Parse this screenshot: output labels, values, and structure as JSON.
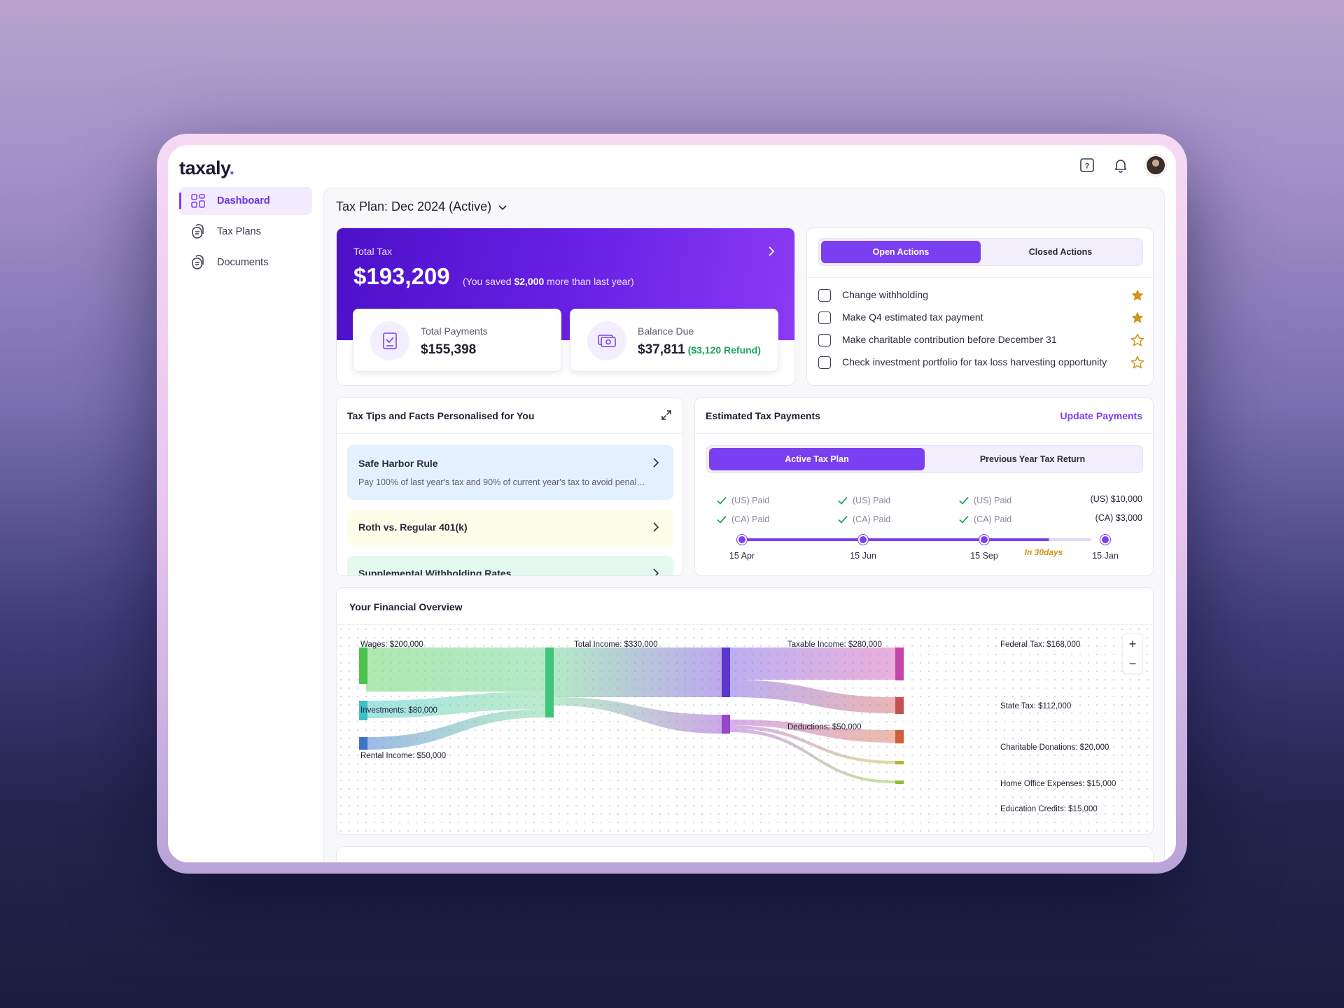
{
  "app": {
    "logo_text": "taxaly",
    "logo_dot": "."
  },
  "header": {
    "icons": [
      "help-icon",
      "bell-icon",
      "avatar"
    ]
  },
  "sidebar": {
    "items": [
      {
        "label": "Dashboard",
        "icon": "dashboard-grid-icon",
        "active": true
      },
      {
        "label": "Tax Plans",
        "icon": "tax-plans-icon",
        "active": false
      },
      {
        "label": "Documents",
        "icon": "documents-icon",
        "active": false
      }
    ]
  },
  "plan": {
    "title": "Tax Plan: Dec 2024 (Active)"
  },
  "total_tax": {
    "label": "Total Tax",
    "amount": "$193,209",
    "note_prefix": "(You saved ",
    "note_amount": "$2,000",
    "note_suffix": " more than last year)",
    "payments_label": "Total Payments",
    "payments_value": "$155,398",
    "balance_label": "Balance Due",
    "balance_value": "$37,811",
    "balance_refund": "($3,120 Refund)"
  },
  "actions": {
    "tabs": [
      {
        "label": "Open Actions",
        "active": true
      },
      {
        "label": "Closed Actions",
        "active": false
      }
    ],
    "items": [
      {
        "text": "Change withholding",
        "starred": true
      },
      {
        "text": "Make Q4 estimated tax payment",
        "starred": true
      },
      {
        "text": "Make charitable contribution before December 31",
        "starred": false
      },
      {
        "text": "Check investment portfolio for tax loss harvesting opportunity",
        "starred": false
      }
    ]
  },
  "tips": {
    "title": "Tax Tips and Facts Personalised for You",
    "items": [
      {
        "title": "Safe Harbor Rule",
        "desc": "Pay 100% of last year's tax and 90% of current year's tax to avoid penalties",
        "bg": "#e3f1fe"
      },
      {
        "title": "Roth vs. Regular 401(k)",
        "desc": "",
        "bg": "#fefde9"
      },
      {
        "title": "Supplemental Withholding Rates",
        "desc": "",
        "bg": "#e4faee"
      }
    ]
  },
  "estimated": {
    "title": "Estimated Tax Payments",
    "update_label": "Update Payments",
    "tabs": [
      {
        "label": "Active Tax Plan",
        "active": true
      },
      {
        "label": "Previous Year Tax Return",
        "active": false
      }
    ],
    "paid_us": "(US) Paid",
    "paid_ca": "(CA) Paid",
    "total_us": "(US) $10,000",
    "total_ca": "(CA) $3,000",
    "dates": [
      "15 Apr",
      "15 Jun",
      "15 Sep",
      "15 Jan"
    ],
    "badge": "In 30days"
  },
  "overview": {
    "title": "Your Financial Overview",
    "zoom_in": "+",
    "zoom_out": "−",
    "nodes": {
      "wages": "Wages: $200,000",
      "investments": "Investments: $80,000",
      "rental": "Rental Income: $50,000",
      "total_income": "Total Income: $330,000",
      "taxable": "Taxable Income: $280,000",
      "deductions": "Deductions: $50,000",
      "federal": "Federal Tax: $168,000",
      "state": "State Tax: $112,000",
      "charitable": "Charitable Donations: $20,000",
      "home_office": "Home Office Expenses: $15,000",
      "education": "Education Credits: $15,000"
    }
  },
  "colors": {
    "accent": "#7b3ff2",
    "success": "#20a45a",
    "star": "#d1931a"
  }
}
